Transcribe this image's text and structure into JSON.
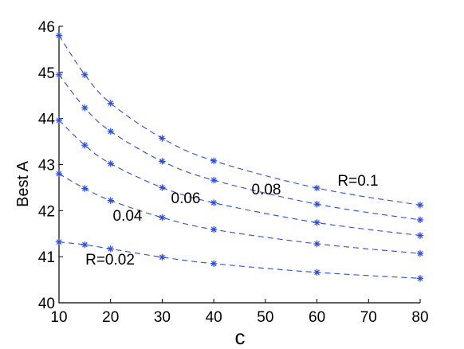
{
  "chart_data": {
    "type": "line",
    "xlabel": "c",
    "ylabel": "Best A",
    "x": [
      10,
      15,
      20,
      30,
      40,
      60,
      80
    ],
    "xlim": [
      10,
      80
    ],
    "ylim": [
      40,
      46
    ],
    "xticks": [
      "10",
      "20",
      "30",
      "40",
      "50",
      "60",
      "70",
      "80"
    ],
    "yticks": [
      "40",
      "41",
      "42",
      "43",
      "44",
      "45",
      "46"
    ],
    "grid": false,
    "line_style": "dashed",
    "marker": "asterisk",
    "color": "#2a4be8",
    "series": [
      {
        "name": "R=0.02",
        "values": [
          41.32,
          41.26,
          41.17,
          40.99,
          40.85,
          40.66,
          40.53
        ]
      },
      {
        "name": "0.04",
        "values": [
          42.8,
          42.48,
          42.22,
          41.85,
          41.59,
          41.28,
          41.07
        ]
      },
      {
        "name": "0.06",
        "values": [
          43.96,
          43.42,
          43.02,
          42.5,
          42.17,
          41.74,
          41.46
        ]
      },
      {
        "name": "0.08",
        "values": [
          44.95,
          44.23,
          43.72,
          43.07,
          42.66,
          42.14,
          41.8
        ]
      },
      {
        "name": "R=0.1",
        "values": [
          45.8,
          44.95,
          44.33,
          43.57,
          43.08,
          42.49,
          42.12
        ]
      }
    ],
    "annotations": [
      "R=0.02",
      "0.04",
      "0.06",
      "0.08",
      "R=0.1"
    ]
  }
}
